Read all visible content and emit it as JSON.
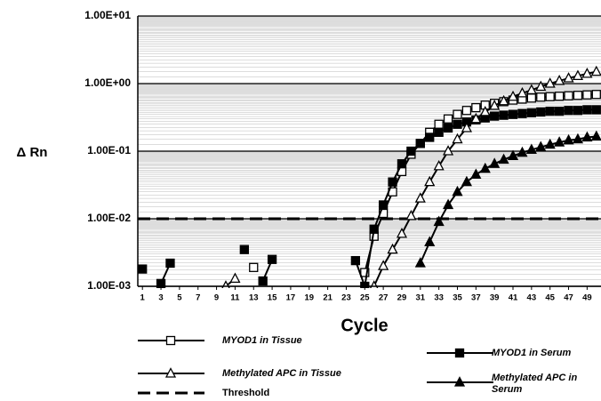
{
  "chart_data": {
    "type": "line",
    "y_label": "Δ Rn",
    "x_label": "Cycle",
    "x": [
      1,
      2,
      3,
      4,
      5,
      6,
      7,
      8,
      9,
      10,
      11,
      12,
      13,
      14,
      15,
      16,
      17,
      18,
      19,
      20,
      21,
      22,
      23,
      24,
      25,
      26,
      27,
      28,
      29,
      30,
      31,
      32,
      33,
      34,
      35,
      36,
      37,
      38,
      39,
      40,
      41,
      42,
      43,
      44,
      45,
      46,
      47,
      48,
      49,
      50
    ],
    "xlim": [
      0.5,
      50.5
    ],
    "xticks": [
      1,
      3,
      5,
      7,
      9,
      11,
      13,
      15,
      17,
      19,
      21,
      23,
      25,
      27,
      29,
      31,
      33,
      35,
      37,
      39,
      41,
      43,
      45,
      47,
      49
    ],
    "ylim": [
      0.001,
      10
    ],
    "yscale": "log",
    "yticks": [
      {
        "value": 0.001,
        "label": "1.00E-03"
      },
      {
        "value": 0.01,
        "label": "1.00E-02"
      },
      {
        "value": 0.1,
        "label": "1.00E-01"
      },
      {
        "value": 1,
        "label": "1.00E+00"
      },
      {
        "value": 10,
        "label": "1.00E+01"
      }
    ],
    "grid": true,
    "minor_grid": true,
    "series": [
      {
        "name": "MYOD1 in Tissue",
        "color": "#000000",
        "marker": "square",
        "filled": false,
        "values": [
          null,
          null,
          null,
          null,
          null,
          null,
          null,
          null,
          null,
          null,
          null,
          null,
          0.0019,
          null,
          null,
          null,
          null,
          null,
          null,
          null,
          null,
          null,
          null,
          null,
          0.0016,
          0.0055,
          0.012,
          0.025,
          0.05,
          0.09,
          0.13,
          0.19,
          0.25,
          0.3,
          0.35,
          0.4,
          0.44,
          0.48,
          0.51,
          0.54,
          0.57,
          0.59,
          0.61,
          0.63,
          0.64,
          0.65,
          0.66,
          0.67,
          0.68,
          0.69
        ]
      },
      {
        "name": "MYOD1 in Serum",
        "color": "#000000",
        "marker": "square",
        "filled": true,
        "values": [
          0.0018,
          null,
          0.0011,
          0.0022,
          null,
          null,
          null,
          null,
          null,
          null,
          null,
          0.0035,
          null,
          0.0012,
          0.0025,
          null,
          null,
          null,
          null,
          null,
          null,
          null,
          null,
          0.0024,
          0.001,
          0.007,
          0.016,
          0.035,
          0.065,
          0.1,
          0.13,
          0.16,
          0.19,
          0.22,
          0.25,
          0.27,
          0.29,
          0.31,
          0.33,
          0.34,
          0.35,
          0.36,
          0.37,
          0.38,
          0.39,
          0.39,
          0.4,
          0.4,
          0.41,
          0.41
        ]
      },
      {
        "name": "Methylated APC in Tissue",
        "color": "#000000",
        "marker": "triangle",
        "filled": false,
        "values": [
          null,
          null,
          null,
          null,
          null,
          null,
          null,
          null,
          null,
          0.001,
          0.0013,
          null,
          null,
          null,
          null,
          null,
          null,
          null,
          null,
          null,
          null,
          null,
          null,
          null,
          null,
          0.001,
          0.002,
          0.0035,
          0.006,
          0.011,
          0.02,
          0.035,
          0.06,
          0.1,
          0.15,
          0.22,
          0.3,
          0.38,
          0.47,
          0.55,
          0.64,
          0.72,
          0.8,
          0.9,
          1,
          1.1,
          1.2,
          1.3,
          1.4,
          1.5
        ]
      },
      {
        "name": "Methylated APC in Serum",
        "color": "#000000",
        "marker": "triangle",
        "filled": true,
        "values": [
          null,
          null,
          null,
          null,
          null,
          null,
          null,
          null,
          null,
          null,
          null,
          null,
          null,
          null,
          null,
          null,
          null,
          null,
          null,
          null,
          null,
          null,
          null,
          null,
          null,
          null,
          null,
          null,
          null,
          null,
          0.0022,
          0.0045,
          0.009,
          0.016,
          0.025,
          0.035,
          0.045,
          0.055,
          0.065,
          0.075,
          0.085,
          0.095,
          0.105,
          0.115,
          0.125,
          0.135,
          0.145,
          0.15,
          0.16,
          0.165
        ]
      }
    ],
    "threshold": {
      "name": "Threshold",
      "value": 0.01
    }
  }
}
